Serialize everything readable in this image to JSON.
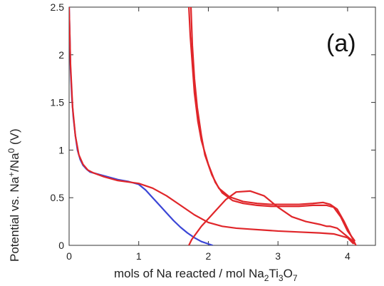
{
  "chart_data": {
    "type": "line",
    "panel_label": "(a)",
    "xlabel": {
      "text": "mols of Na reacted / mol Na",
      "formula_subs": [
        "2",
        "Ti",
        "3",
        "O",
        "7"
      ]
    },
    "ylabel": {
      "prefix": "Potential vs. Na",
      "sup1": "+",
      "mid": "/Na",
      "sup2": "0",
      "suffix": " (V)"
    },
    "xlim": [
      0,
      4.4
    ],
    "ylim": [
      0,
      2.5
    ],
    "xticks": [
      0,
      1,
      2,
      3,
      4
    ],
    "xtick_labels": [
      "0",
      "1",
      "2",
      "3",
      "4"
    ],
    "yticks": [
      0,
      0.5,
      1,
      1.5,
      2,
      2.5
    ],
    "ytick_labels": [
      "0",
      "0.5",
      "1",
      "1.5",
      "2",
      "2.5"
    ],
    "grid": false,
    "series": [
      {
        "color": "#3b46d6",
        "x": [
          0.0,
          0.01,
          0.02,
          0.04,
          0.06,
          0.09,
          0.12,
          0.16,
          0.2,
          0.25,
          0.3,
          0.4,
          0.55,
          0.7,
          0.85,
          1.0,
          1.1,
          1.2,
          1.3,
          1.4,
          1.5,
          1.6,
          1.7,
          1.8,
          1.9,
          2.0,
          2.06
        ],
        "y": [
          2.5,
          2.2,
          1.85,
          1.55,
          1.35,
          1.15,
          1.0,
          0.9,
          0.84,
          0.8,
          0.77,
          0.75,
          0.72,
          0.69,
          0.67,
          0.64,
          0.58,
          0.5,
          0.42,
          0.34,
          0.26,
          0.19,
          0.13,
          0.08,
          0.04,
          0.015,
          0.0
        ]
      },
      {
        "color": "#e0262a",
        "x": [
          0.0,
          0.02,
          0.05,
          0.09,
          0.14,
          0.2,
          0.27,
          0.35,
          0.5,
          0.7,
          0.9,
          1.0,
          1.2,
          1.4,
          1.6,
          1.8,
          2.0,
          2.2,
          2.4,
          2.6,
          2.8,
          3.0,
          3.3,
          3.6,
          3.8,
          4.0,
          4.08
        ],
        "y": [
          2.5,
          1.9,
          1.45,
          1.15,
          0.95,
          0.85,
          0.79,
          0.76,
          0.72,
          0.68,
          0.66,
          0.65,
          0.6,
          0.52,
          0.42,
          0.32,
          0.24,
          0.2,
          0.18,
          0.17,
          0.16,
          0.15,
          0.14,
          0.13,
          0.12,
          0.08,
          0.02
        ]
      },
      {
        "color": "#e0262a",
        "x": [
          1.72,
          1.74,
          1.77,
          1.8,
          1.85,
          1.9,
          2.0,
          2.1,
          2.2,
          2.35,
          2.5,
          2.7,
          2.9,
          3.1,
          3.3,
          3.5,
          3.6,
          3.7,
          3.8,
          3.9,
          4.0,
          4.1
        ],
        "y": [
          2.5,
          2.2,
          1.9,
          1.6,
          1.3,
          1.1,
          0.85,
          0.66,
          0.55,
          0.47,
          0.44,
          0.42,
          0.41,
          0.41,
          0.41,
          0.42,
          0.42,
          0.42,
          0.4,
          0.3,
          0.15,
          0.05
        ]
      },
      {
        "color": "#e0262a",
        "x": [
          1.72,
          1.74,
          1.76,
          1.8,
          1.85,
          1.9,
          2.0,
          2.1,
          2.25,
          2.4,
          2.6,
          2.8,
          3.0,
          3.2,
          3.4,
          3.6,
          3.7,
          3.75,
          3.85,
          3.95,
          4.05,
          4.1
        ],
        "y": [
          0.0,
          0.03,
          0.06,
          0.1,
          0.15,
          0.2,
          0.28,
          0.36,
          0.48,
          0.56,
          0.57,
          0.52,
          0.4,
          0.3,
          0.25,
          0.22,
          0.2,
          0.2,
          0.18,
          0.12,
          0.06,
          0.02
        ]
      },
      {
        "color": "#e0262a",
        "x": [
          1.75,
          1.77,
          1.8,
          1.84,
          1.9,
          1.95,
          2.05,
          2.15,
          2.3,
          2.5,
          2.7,
          2.9,
          3.1,
          3.3,
          3.5,
          3.65,
          3.75,
          3.85,
          3.95,
          4.05,
          4.12
        ],
        "y": [
          2.5,
          2.1,
          1.75,
          1.45,
          1.15,
          0.95,
          0.74,
          0.6,
          0.51,
          0.46,
          0.44,
          0.43,
          0.43,
          0.43,
          0.44,
          0.45,
          0.43,
          0.38,
          0.25,
          0.1,
          0.0
        ]
      }
    ]
  }
}
